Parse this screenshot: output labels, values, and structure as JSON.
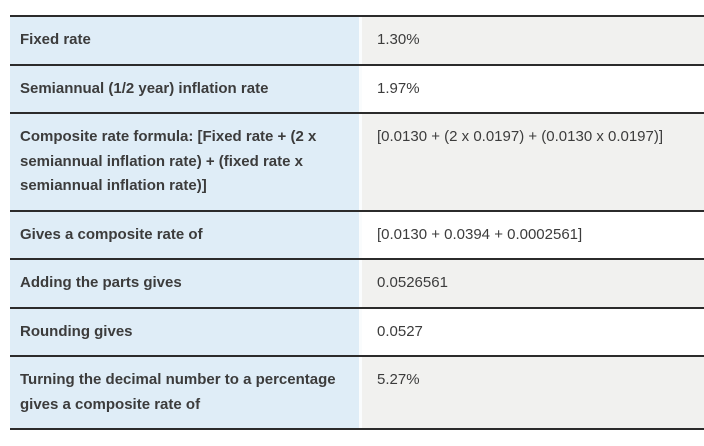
{
  "table": {
    "description": "Composite rate calculation table",
    "columns": [
      "label",
      "value"
    ],
    "rows": [
      {
        "label": "Fixed rate",
        "value": "1.30%"
      },
      {
        "label": "Semiannual (1/2 year) inflation rate",
        "value": "1.97%"
      },
      {
        "label": "Composite rate formula: [Fixed rate + (2 x semiannual inflation rate) + (fixed rate x semiannual inflation rate)]",
        "value": "[0.0130 + (2 x 0.0197) + (0.0130 x 0.0197)]"
      },
      {
        "label": "Gives a composite rate of",
        "value": "[0.0130 + 0.0394 + 0.0002561]"
      },
      {
        "label": "Adding the parts gives",
        "value": "0.0526561"
      },
      {
        "label": "Rounding gives",
        "value": "0.0527"
      },
      {
        "label": "Turning the decimal number to a percentage gives a composite rate of",
        "value": "5.27%"
      }
    ]
  },
  "colors": {
    "label_bg": "#dfedf7",
    "value_bg_odd": "#f1f1ef",
    "value_bg_even": "#ffffff",
    "border": "#2b2b2b",
    "separator": "#fafcfd",
    "text": "#3c3c3c",
    "page_bg": "#ffffff"
  }
}
